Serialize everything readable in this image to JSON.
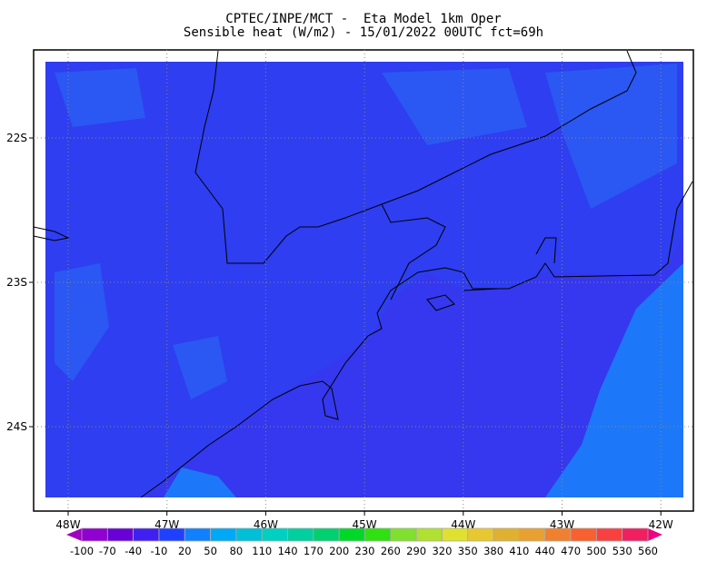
{
  "header": {
    "title_line1": "CPTEC/INPE/MCT -  Eta Model 1km Oper",
    "title_line2": "Sensible heat (W/m2) - 15/01/2022 00UTC fct=69h"
  },
  "map": {
    "lon_labels": [
      "48W",
      "47W",
      "46W",
      "45W",
      "44W",
      "43W",
      "42W"
    ],
    "lat_labels": [
      "22S",
      "23S",
      "24S"
    ],
    "land_color": "#2e3ef0",
    "ocean_color": "#3538ee",
    "warm_ocean_color": "#1c78f8",
    "coastline_color": "#000000"
  },
  "colorbar": {
    "labels": [
      "-100",
      "-70",
      "-40",
      "-10",
      "20",
      "50",
      "80",
      "110",
      "140",
      "170",
      "200",
      "230",
      "260",
      "290",
      "320",
      "350",
      "380",
      "410",
      "440",
      "470",
      "500",
      "530",
      "560"
    ],
    "colors": [
      "#9000d0",
      "#6a00d8",
      "#4020f0",
      "#2040ff",
      "#1080ff",
      "#00a8f8",
      "#00c0d8",
      "#00d0c0",
      "#00d0a0",
      "#00d070",
      "#00d828",
      "#30e010",
      "#80e030",
      "#b0e030",
      "#e0e030",
      "#e8c830",
      "#e0b030",
      "#e8a030",
      "#f08030",
      "#f86030",
      "#f84040",
      "#f02060"
    ],
    "under_color": "#a000c0",
    "over_color": "#f00080"
  }
}
